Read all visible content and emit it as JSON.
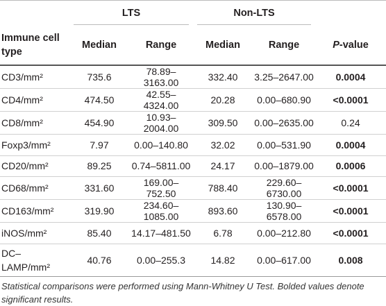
{
  "table": {
    "groups": [
      "LTS",
      "Non-LTS"
    ],
    "columns": [
      "Immune cell\ntype",
      "Median",
      "Range",
      "Median",
      "Range"
    ],
    "p_header": {
      "italic": "P",
      "rest": "-value"
    },
    "rows": [
      {
        "cells": [
          "CD3/mm²",
          "735.6",
          "78.89–3163.00",
          "332.40",
          "3.25–2647.00",
          "0.0004"
        ],
        "bold": true
      },
      {
        "cells": [
          "CD4/mm²",
          "474.50",
          "42.55–4324.00",
          "20.28",
          "0.00–680.90",
          "<0.0001"
        ],
        "bold": true
      },
      {
        "cells": [
          "CD8/mm²",
          "454.90",
          "10.93–2004.00",
          "309.50",
          "0.00–2635.00",
          "0.24"
        ],
        "bold": false
      },
      {
        "cells": [
          "Foxp3/mm²",
          "7.97",
          "0.00–140.80",
          "32.02",
          "0.00–531.90",
          "0.0004"
        ],
        "bold": true
      },
      {
        "cells": [
          "CD20/mm²",
          "89.25",
          "0.74–5811.00",
          "24.17",
          "0.00–1879.00",
          "0.0006"
        ],
        "bold": true
      },
      {
        "cells": [
          "CD68/mm²",
          "331.60",
          "169.00–752.50",
          "788.40",
          "229.60–6730.00",
          "<0.0001"
        ],
        "bold": true
      },
      {
        "cells": [
          "CD163/mm²",
          "319.90",
          "234.60–1085.00",
          "893.60",
          "130.90–6578.00",
          "<0.0001"
        ],
        "bold": true
      },
      {
        "cells": [
          "iNOS/mm²",
          "85.40",
          "14.17–481.50",
          "6.78",
          "0.00–212.80",
          "<0.0001"
        ],
        "bold": true
      },
      {
        "cells": [
          "DC–\nLAMP/mm²",
          "40.76",
          "0.00–255.3",
          "14.82",
          "0.00–617.00",
          "0.008"
        ],
        "bold": true
      }
    ]
  },
  "footnote": "Statistical comparisons were performed using Mann-Whitney U Test. Bolded values denote significant results."
}
